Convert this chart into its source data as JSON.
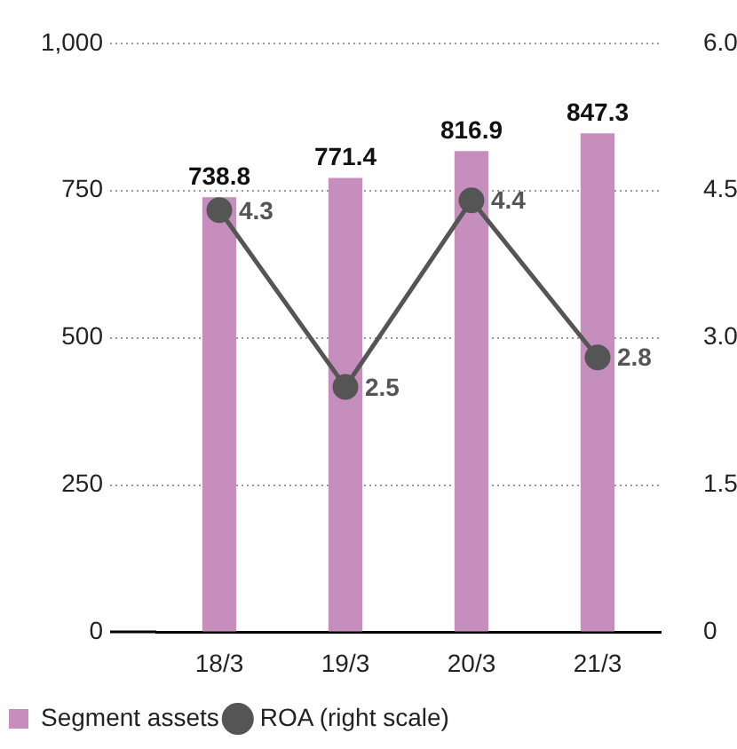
{
  "chart_data": {
    "type": "bar",
    "categories": [
      "18/3",
      "19/3",
      "20/3",
      "21/3"
    ],
    "series": [
      {
        "name": "Segment assets",
        "color": "#c58ebd",
        "values": [
          738.8,
          771.4,
          816.9,
          847.3
        ]
      },
      {
        "name": "ROA (right scale)",
        "type": "line",
        "axis": "y2",
        "color": "#555555",
        "values": [
          4.3,
          2.5,
          4.4,
          2.8
        ]
      }
    ],
    "ylim": [
      0,
      1000
    ],
    "yticks": [
      0,
      250,
      500,
      750,
      {
        "value": 1000,
        "label": "1,000"
      }
    ],
    "y2lim": [
      0,
      6
    ],
    "y2ticks": [
      0,
      1.5,
      {
        "value": 3,
        "label": "3.0"
      },
      4.5,
      {
        "value": 6,
        "label": "6.0"
      }
    ],
    "grid": "y",
    "legend": "bottom left",
    "data_labels": true,
    "marker": "circle"
  }
}
